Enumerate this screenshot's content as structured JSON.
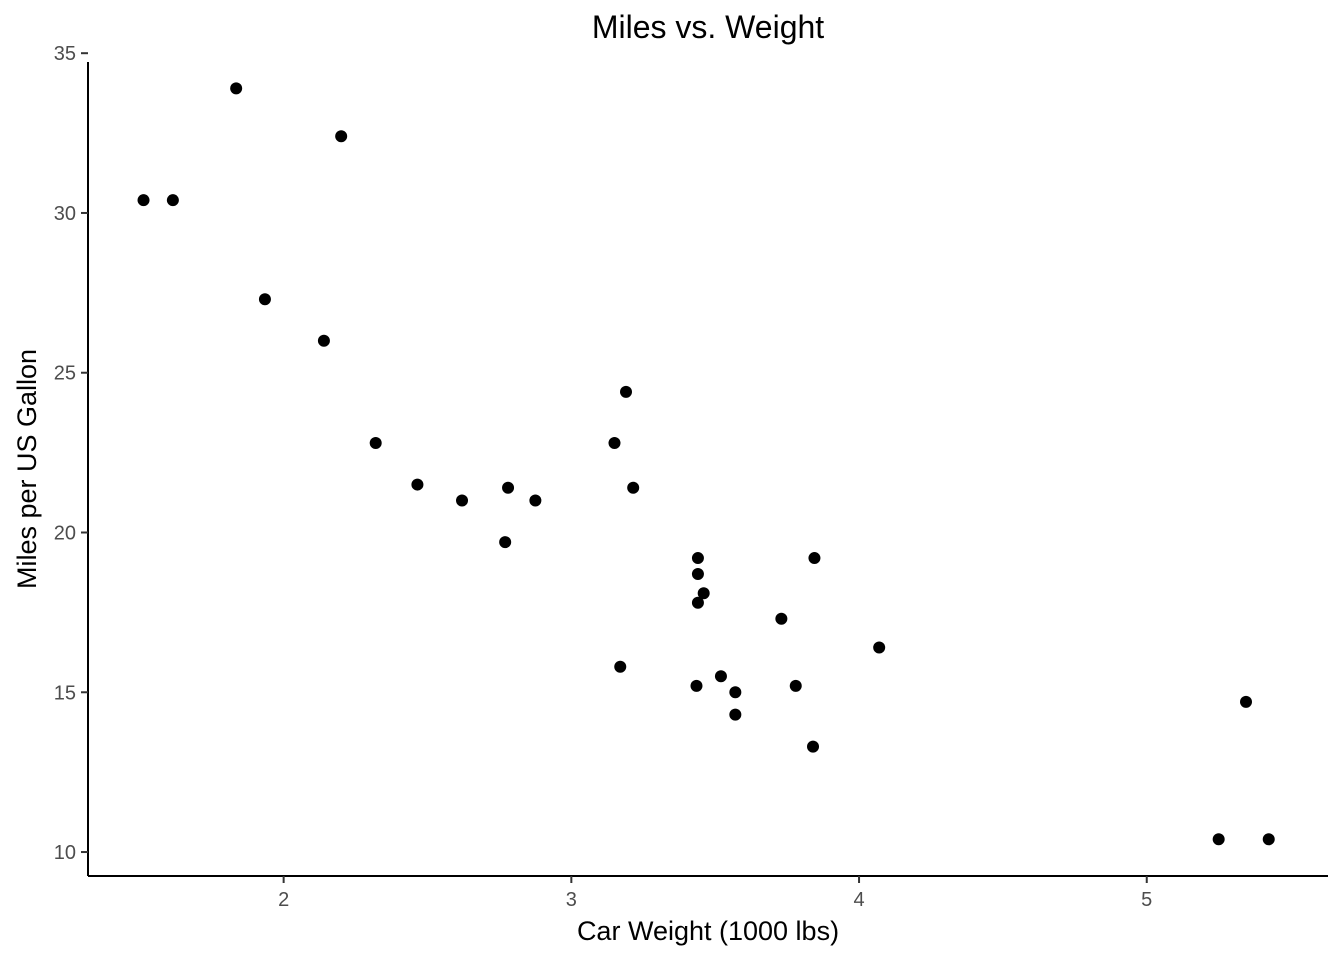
{
  "chart_data": {
    "type": "scatter",
    "title": "Miles vs. Weight",
    "xlabel": "Car Weight (1000 lbs)",
    "ylabel": "Miles per US Gallon",
    "xlim": [
      1.32,
      5.63
    ],
    "ylim": [
      9.25,
      35.1
    ],
    "xticks": [
      2,
      3,
      4,
      5
    ],
    "yticks": [
      10,
      15,
      20,
      25,
      30,
      35
    ],
    "grid": false,
    "point_color": "#000000",
    "points": [
      {
        "x": 2.62,
        "y": 21.0
      },
      {
        "x": 2.875,
        "y": 21.0
      },
      {
        "x": 2.32,
        "y": 22.8
      },
      {
        "x": 3.215,
        "y": 21.4
      },
      {
        "x": 3.44,
        "y": 18.7
      },
      {
        "x": 3.46,
        "y": 18.1
      },
      {
        "x": 3.57,
        "y": 14.3
      },
      {
        "x": 3.19,
        "y": 24.4
      },
      {
        "x": 3.15,
        "y": 22.8
      },
      {
        "x": 3.44,
        "y": 19.2
      },
      {
        "x": 3.44,
        "y": 17.8
      },
      {
        "x": 4.07,
        "y": 16.4
      },
      {
        "x": 3.73,
        "y": 17.3
      },
      {
        "x": 3.78,
        "y": 15.2
      },
      {
        "x": 5.25,
        "y": 10.4
      },
      {
        "x": 5.424,
        "y": 10.4
      },
      {
        "x": 5.345,
        "y": 14.7
      },
      {
        "x": 2.2,
        "y": 32.4
      },
      {
        "x": 1.615,
        "y": 30.4
      },
      {
        "x": 1.835,
        "y": 33.9
      },
      {
        "x": 2.465,
        "y": 21.5
      },
      {
        "x": 3.52,
        "y": 15.5
      },
      {
        "x": 3.435,
        "y": 15.2
      },
      {
        "x": 3.84,
        "y": 13.3
      },
      {
        "x": 3.845,
        "y": 19.2
      },
      {
        "x": 1.935,
        "y": 27.3
      },
      {
        "x": 2.14,
        "y": 26.0
      },
      {
        "x": 1.513,
        "y": 30.4
      },
      {
        "x": 3.17,
        "y": 15.8
      },
      {
        "x": 2.77,
        "y": 19.7
      },
      {
        "x": 3.57,
        "y": 15.0
      },
      {
        "x": 2.78,
        "y": 21.4
      }
    ]
  }
}
